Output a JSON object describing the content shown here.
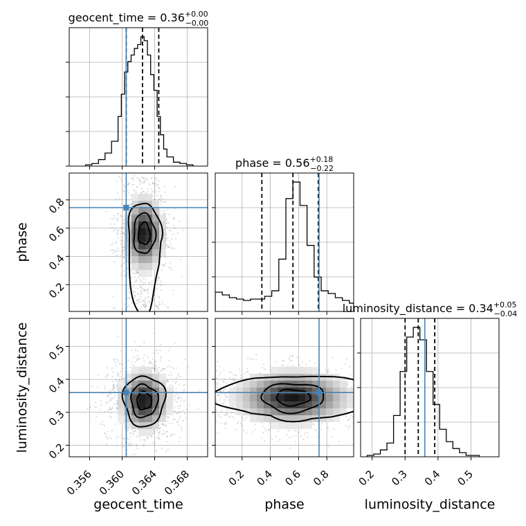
{
  "chart_data": {
    "type": "corner",
    "parameters": [
      {
        "key": "geocent_time",
        "label": "geocent_time",
        "range": [
          0.3535,
          0.3705
        ],
        "ticks": [
          0.356,
          0.36,
          0.364,
          0.368
        ],
        "tick_labels": [
          "0.356",
          "0.360",
          "0.364",
          "0.368"
        ],
        "truth": 0.3605
      },
      {
        "key": "phase",
        "label": "phase",
        "range": [
          0.01,
          0.99
        ],
        "ticks": [
          0.2,
          0.4,
          0.6,
          0.8
        ],
        "tick_labels": [
          "0.2",
          "0.4",
          "0.6",
          "0.8"
        ],
        "truth": 0.745
      },
      {
        "key": "luminosity_distance",
        "label": "luminosity_distance",
        "range": [
          0.165,
          0.585
        ],
        "ticks": [
          0.2,
          0.3,
          0.4,
          0.5
        ],
        "tick_labels": [
          "0.2",
          "0.3",
          "0.4",
          "0.5"
        ],
        "truth": 0.36
      }
    ],
    "titles": [
      {
        "name": "geocent_time",
        "median": "0.36",
        "plus": "+0.00",
        "minus": "−0.00"
      },
      {
        "name": "phase",
        "median": "0.56",
        "plus": "+0.18",
        "minus": "−0.22"
      },
      {
        "name": "luminosity_distance",
        "median": "0.34",
        "plus": "+0.05",
        "minus": "−0.04"
      }
    ],
    "quantiles": [
      [
        0.3605,
        0.3625,
        0.3645
      ],
      [
        0.34,
        0.56,
        0.74
      ],
      [
        0.3,
        0.34,
        0.39
      ]
    ],
    "histograms": [
      {
        "bin_edges": [
          0.3555,
          0.3563,
          0.3571,
          0.3579,
          0.3587,
          0.3595,
          0.3599,
          0.3603,
          0.3607,
          0.3611,
          0.3615,
          0.3619,
          0.3623,
          0.3627,
          0.3631,
          0.3635,
          0.3639,
          0.3643,
          0.3647,
          0.3651,
          0.3655,
          0.3663,
          0.3671,
          0.3679,
          0.3687
        ],
        "counts": [
          1,
          2,
          5,
          10,
          19,
          38,
          55,
          72,
          80,
          85,
          90,
          93,
          99,
          96,
          85,
          70,
          58,
          38,
          24,
          13,
          7,
          3,
          2,
          1
        ]
      },
      {
        "bin_edges": [
          0.01,
          0.06,
          0.11,
          0.16,
          0.21,
          0.26,
          0.31,
          0.36,
          0.41,
          0.46,
          0.51,
          0.56,
          0.61,
          0.66,
          0.71,
          0.76,
          0.81,
          0.86,
          0.91,
          0.96,
          0.99
        ],
        "counts": [
          14,
          12,
          10,
          9,
          8,
          9,
          9,
          11,
          15,
          38,
          82,
          94,
          77,
          48,
          25,
          15,
          13,
          10,
          8,
          6
        ]
      },
      {
        "bin_edges": [
          0.185,
          0.205,
          0.225,
          0.245,
          0.265,
          0.285,
          0.305,
          0.325,
          0.345,
          0.365,
          0.385,
          0.405,
          0.425,
          0.445,
          0.465,
          0.485,
          0.505,
          0.525
        ],
        "counts": [
          1,
          2,
          5,
          10,
          30,
          62,
          87,
          94,
          85,
          62,
          38,
          20,
          11,
          6,
          3,
          1,
          1
        ]
      }
    ],
    "contours_2d": [
      {
        "x": "geocent_time",
        "y": "phase",
        "center": [
          0.3627,
          0.56
        ],
        "spread": [
          0.0012,
          0.13
        ]
      },
      {
        "x": "geocent_time",
        "y": "luminosity_distance",
        "center": [
          0.3627,
          0.335
        ],
        "spread": [
          0.0015,
          0.045
        ]
      },
      {
        "x": "phase",
        "y": "luminosity_distance",
        "center": [
          0.56,
          0.345
        ],
        "spread": [
          0.2,
          0.04
        ]
      }
    ],
    "truth_color": "#4682b4",
    "grid": true
  }
}
